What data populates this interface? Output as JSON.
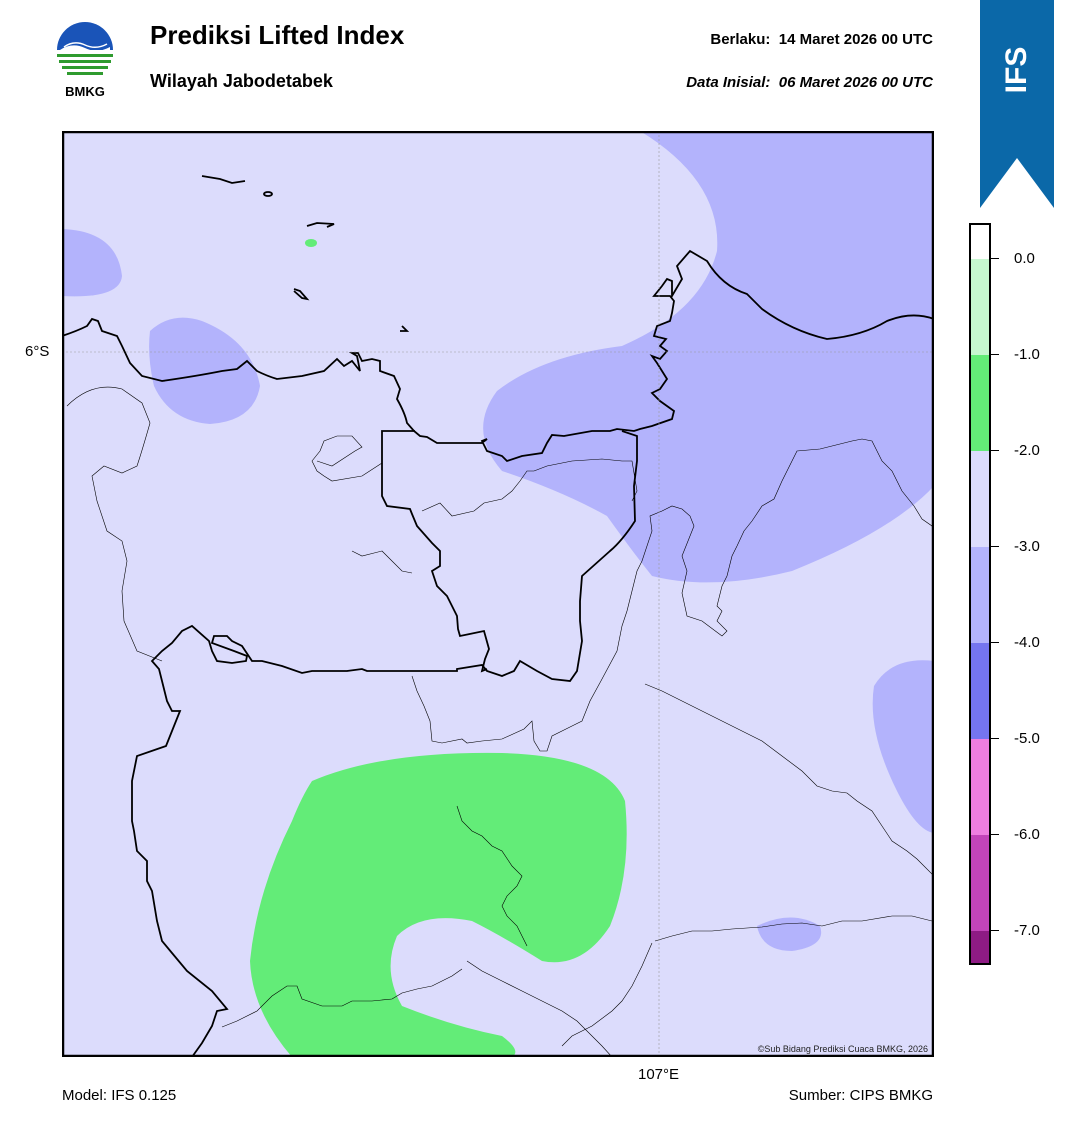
{
  "header": {
    "title": "Prediksi Lifted Index",
    "subtitle": "Wilayah Jabodetabek",
    "valid_label": "Berlaku:",
    "valid_value": "14 Maret 2026 00 UTC",
    "initial_label": "Data Inisial:",
    "initial_value": "06 Maret 2026 00 UTC"
  },
  "logo": {
    "text": "BMKG",
    "icon": "bmkg-logo"
  },
  "ribbon": {
    "text": "IFS",
    "color": "#0b68a8"
  },
  "map": {
    "lat_label": "6°S",
    "lon_label": "107°E",
    "copyright": "©Sub Bidang Prediksi Cuaca BMKG, 2026"
  },
  "footer": {
    "model": "Model: IFS 0.125",
    "source": "Sumber: CIPS BMKG"
  },
  "colorbar": {
    "ticks": [
      "0.0",
      "-1.0",
      "-2.0",
      "-3.0",
      "-4.0",
      "-5.0",
      "-6.0",
      "-7.0"
    ],
    "bands": [
      {
        "range": "> 0.0",
        "color": "#ffffff"
      },
      {
        "range": "0.0 to -1.0",
        "color": "#c6f7d0"
      },
      {
        "range": "-1.0 to -2.0",
        "color": "#63ec78"
      },
      {
        "range": "-2.0 to -3.0",
        "color": "#dcdcfc"
      },
      {
        "range": "-3.0 to -4.0",
        "color": "#b3b3fc"
      },
      {
        "range": "-4.0 to -5.0",
        "color": "#7575f0"
      },
      {
        "range": "-5.0 to -6.0",
        "color": "#ee7ee0"
      },
      {
        "range": "-6.0 to -7.0",
        "color": "#c244b9"
      },
      {
        "range": "< -7.0",
        "color": "#8e1b84"
      }
    ]
  }
}
